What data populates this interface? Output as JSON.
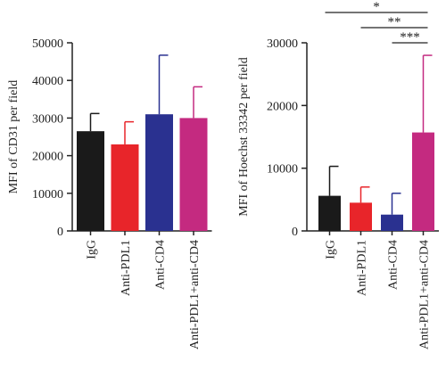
{
  "chart_data": [
    {
      "type": "bar",
      "categories": [
        "IgG",
        "Anti-PDL1",
        "Anti-CD4",
        "Anti-PDL1+anti-CD4"
      ],
      "values": [
        26500,
        23000,
        31000,
        30000
      ],
      "error_upper": [
        31200,
        29000,
        46700,
        38300
      ],
      "ylabel": "MFI of CD31 per field",
      "ylim": [
        0,
        50000
      ],
      "yticks": [
        0,
        10000,
        20000,
        30000,
        40000,
        50000
      ],
      "colors": [
        "#1a1a1a",
        "#e8252a",
        "#2a3190",
        "#c42a80"
      ],
      "significance": []
    },
    {
      "type": "bar",
      "categories": [
        "IgG",
        "Anti-PDL1",
        "Anti-CD4",
        "Anti-PDL1+anti-CD4"
      ],
      "values": [
        5600,
        4500,
        2600,
        15700
      ],
      "error_upper": [
        10300,
        7000,
        6000,
        28000
      ],
      "ylabel": "MFI of Hoechst 33342 per field",
      "ylim": [
        0,
        30000
      ],
      "yticks": [
        0,
        10000,
        20000,
        30000
      ],
      "colors": [
        "#1a1a1a",
        "#e8252a",
        "#2a3190",
        "#c42a80"
      ],
      "significance": [
        {
          "from": 0,
          "to": 3,
          "label": "*"
        },
        {
          "from": 1,
          "to": 3,
          "label": "**"
        },
        {
          "from": 2,
          "to": 3,
          "label": "***"
        }
      ]
    }
  ]
}
